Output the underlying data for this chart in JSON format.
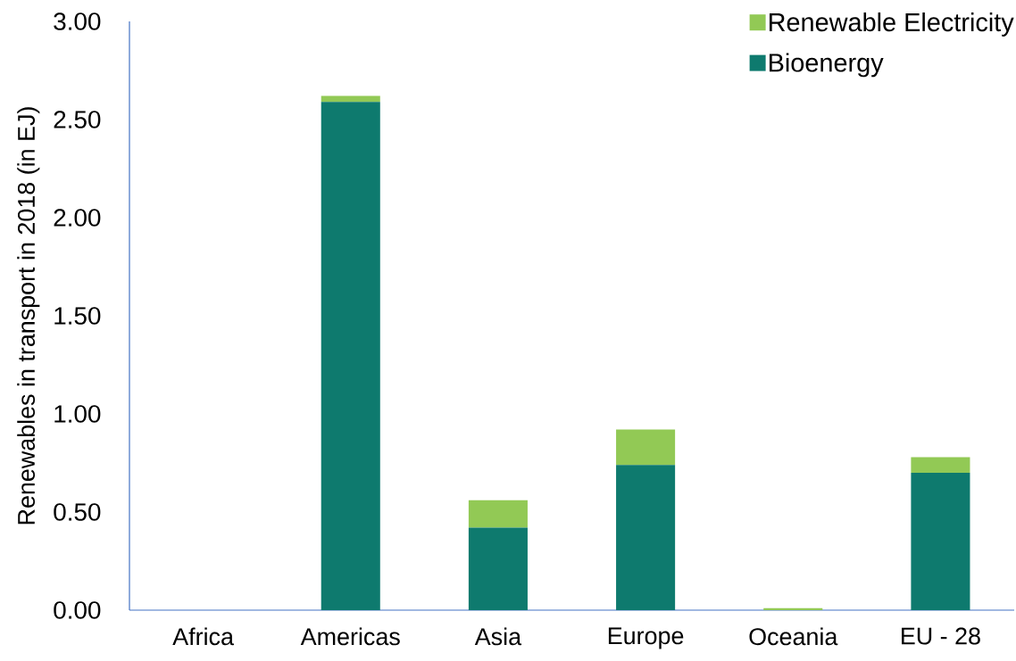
{
  "chart_data": {
    "type": "bar",
    "stacked": true,
    "ylabel": "Renewables in transport in 2018 (in EJ)",
    "categories": [
      "Africa",
      "Americas",
      "Asia",
      "Europe",
      "Oceania",
      "EU - 28"
    ],
    "series": [
      {
        "name": "Bioenergy",
        "color": "#0e7a6e",
        "values": [
          0,
          2.59,
          0.42,
          0.74,
          0,
          0.7
        ]
      },
      {
        "name": "Renewable Electricity",
        "color": "#92c955",
        "values": [
          0,
          0.03,
          0.14,
          0.18,
          0.01,
          0.08
        ]
      }
    ],
    "ylim": [
      0,
      3
    ],
    "yticks": [
      {
        "value": 0,
        "label": "0.00"
      },
      {
        "value": 0.5,
        "label": "0.50"
      },
      {
        "value": 1,
        "label": "1.00"
      },
      {
        "value": 1.5,
        "label": "1.50"
      },
      {
        "value": 2,
        "label": "2.00"
      },
      {
        "value": 2.5,
        "label": "2.50"
      },
      {
        "value": 3,
        "label": "3.00"
      }
    ],
    "legend": "top right"
  }
}
